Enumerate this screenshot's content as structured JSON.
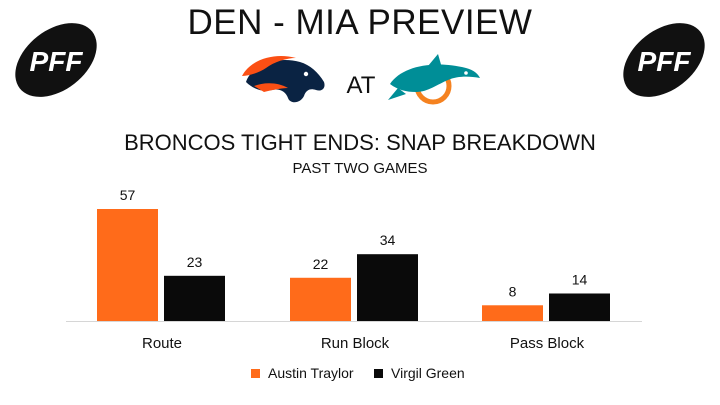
{
  "header": {
    "title": "DEN - MIA PREVIEW",
    "vs_text": "AT",
    "logo_text": "PFF",
    "icons": [
      "pff-football-logo-icon",
      "broncos-horse-logo-icon",
      "dolphins-logo-icon"
    ]
  },
  "colors": {
    "austin_traylor": "#FF6B1A",
    "virgil_green": "#0A0A0A",
    "axis": "#D6D6D6",
    "broncos_orange": "#FB4F14",
    "broncos_navy": "#0A2343",
    "dolphins_aqua": "#008E97",
    "dolphins_orange": "#F58220"
  },
  "chart_data": {
    "type": "bar",
    "title": "BRONCOS TIGHT ENDS: SNAP BREAKDOWN",
    "subtitle": "PAST TWO GAMES",
    "categories": [
      "Route",
      "Run Block",
      "Pass Block"
    ],
    "series": [
      {
        "name": "Austin Traylor",
        "values": [
          57,
          22,
          8
        ]
      },
      {
        "name": "Virgil Green",
        "values": [
          23,
          34,
          14
        ]
      }
    ],
    "ylim": [
      0,
      60
    ],
    "grid": false,
    "data_labels": true,
    "legend_position": "bottom-center"
  }
}
